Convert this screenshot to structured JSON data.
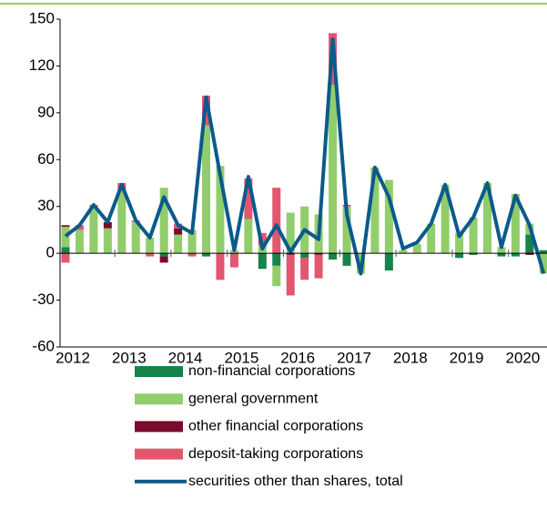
{
  "chart_data": {
    "type": "stacked-bar-line",
    "categories": [
      "2012",
      null,
      null,
      null,
      "2013",
      null,
      null,
      null,
      "2014",
      null,
      null,
      null,
      "2015",
      null,
      null,
      null,
      "2016",
      null,
      null,
      null,
      "2017",
      null,
      null,
      null,
      "2018",
      null,
      null,
      null,
      "2019",
      null,
      null,
      null,
      "2020",
      null,
      null
    ],
    "series": [
      {
        "name": "non-financial corporations",
        "color": "#15834a",
        "type": "bar",
        "values": [
          4,
          0,
          0,
          0,
          0,
          0,
          0,
          -2,
          0,
          0,
          -2,
          0,
          0,
          0,
          -10,
          -8,
          0,
          -3,
          0,
          -4,
          -8,
          0,
          0,
          -11,
          0,
          0,
          0,
          0,
          -3,
          -1,
          0,
          -2,
          -2,
          12,
          2
        ]
      },
      {
        "name": "general government",
        "color": "#92cd6b",
        "type": "bar",
        "values": [
          13,
          15,
          30,
          16,
          40,
          20,
          10,
          42,
          12,
          15,
          82,
          56,
          2,
          22,
          5,
          -13,
          26,
          30,
          25,
          108,
          30,
          -13,
          55,
          47,
          2,
          6,
          19,
          44,
          13,
          23,
          45,
          4,
          38,
          7,
          -13
        ]
      },
      {
        "name": "other financial corporations",
        "color": "#7a0b2c",
        "type": "bar",
        "values": [
          1,
          0,
          0,
          4,
          0,
          0,
          0,
          -4,
          4,
          0,
          0,
          0,
          0,
          0,
          0,
          0,
          -1,
          0,
          -1,
          0,
          0,
          0,
          0,
          0,
          0,
          0,
          0,
          0,
          0,
          0,
          0,
          0,
          0,
          -1,
          0
        ]
      },
      {
        "name": "deposit-taking corporations",
        "color": "#e2566f",
        "type": "bar",
        "values": [
          -6,
          3,
          1,
          0,
          5,
          1,
          -2,
          0,
          3,
          -2,
          19,
          -17,
          -9,
          26,
          8,
          42,
          -26,
          -14,
          -15,
          33,
          1,
          0,
          0,
          0,
          0,
          0,
          0,
          0,
          0,
          0,
          0,
          0,
          0,
          0,
          0
        ]
      },
      {
        "name": "securities other than shares, total",
        "color": "#0a5a8c",
        "type": "line",
        "values": [
          11,
          18,
          31,
          20,
          44,
          21,
          10,
          36,
          18,
          13,
          100,
          50,
          2,
          49,
          3,
          18,
          1,
          15,
          9,
          137,
          25,
          -13,
          55,
          36,
          3,
          7,
          19,
          44,
          11,
          23,
          45,
          4,
          37,
          18,
          -13
        ]
      }
    ],
    "ylim": [
      -60,
      150
    ],
    "yticks": [
      -60,
      -30,
      0,
      30,
      60,
      90,
      120,
      150
    ]
  }
}
